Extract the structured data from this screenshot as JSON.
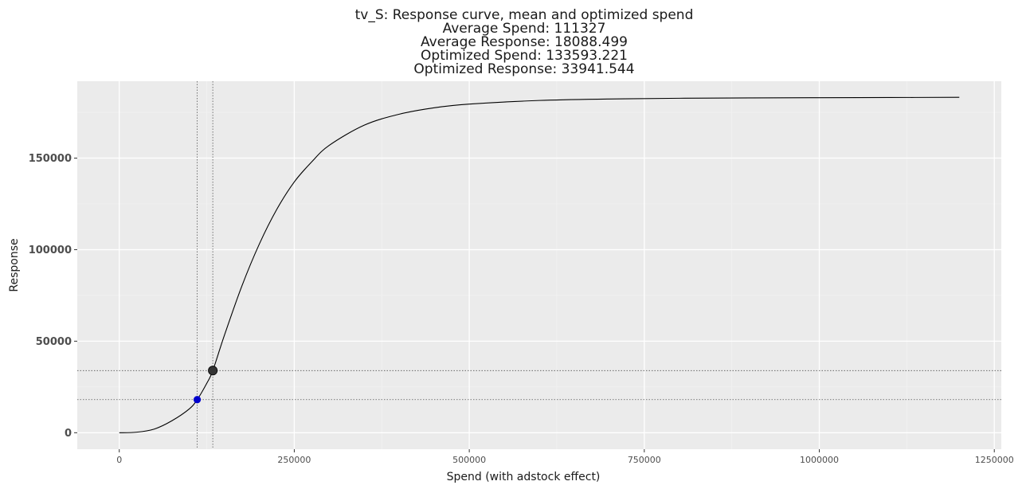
{
  "chart_data": {
    "type": "line",
    "title_lines": [
      "tv_S: Response curve, mean and optimized spend",
      "Average Spend: 111327",
      "Average Response: 18088.499",
      "Optimized Spend: 133593.221",
      "Optimized Response: 33941.544"
    ],
    "xlabel": "Spend (with adstock effect)",
    "ylabel": "Response",
    "xlim": [
      -60000,
      1260000
    ],
    "ylim": [
      -9000,
      192000
    ],
    "x_ticks": [
      0,
      250000,
      500000,
      750000,
      1000000,
      1250000
    ],
    "y_ticks": [
      0,
      50000,
      100000,
      150000
    ],
    "grid": true,
    "series": [
      {
        "x": [
          0,
          25000,
          50000,
          75000,
          100000,
          111327,
          125000,
          133593,
          150000,
          175000,
          200000,
          225000,
          250000,
          275000,
          300000,
          350000,
          400000,
          450000,
          500000,
          600000,
          700000,
          800000,
          900000,
          1000000,
          1100000,
          1200000
        ],
        "y": [
          0,
          300,
          2000,
          6500,
          13000,
          18088,
          27000,
          33942,
          53000,
          80000,
          103000,
          122000,
          137000,
          148000,
          157000,
          168000,
          174000,
          177500,
          179500,
          181500,
          182300,
          182700,
          182900,
          183000,
          183100,
          183200
        ],
        "color": "#000000"
      }
    ],
    "reference_points": {
      "average": {
        "x": 111327,
        "y": 18088.499,
        "color": "#0000cc"
      },
      "optimized": {
        "x": 133593.221,
        "y": 33941.544,
        "color": "#333333"
      }
    },
    "colors": {
      "panel_background": "#ebebeb",
      "grid_major": "#ffffff",
      "grid_minor": "#f3f3f3"
    }
  }
}
